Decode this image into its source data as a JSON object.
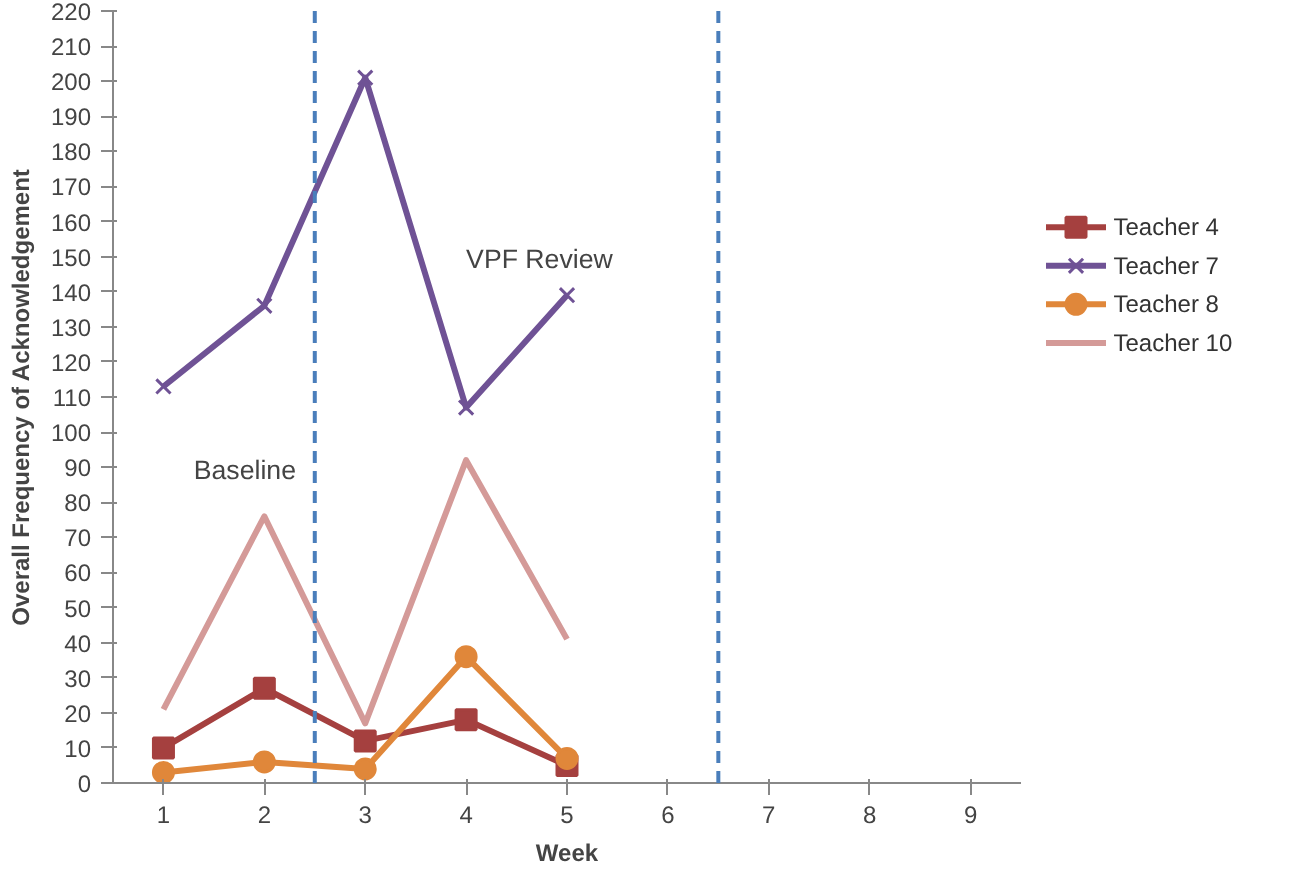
{
  "chart_data": {
    "type": "line",
    "xlabel": "Week",
    "ylabel": "Overall Frequency of Acknowledgement",
    "x": [
      1,
      2,
      3,
      4,
      5
    ],
    "series": [
      {
        "name": "Teacher 4",
        "color": "#a5403f",
        "marker": "square",
        "values": [
          10,
          27,
          12,
          18,
          5
        ]
      },
      {
        "name": "Teacher 7",
        "color": "#6f5295",
        "marker": "cross",
        "values": [
          113,
          136,
          201,
          107,
          139
        ]
      },
      {
        "name": "Teacher 8",
        "color": "#e0873a",
        "marker": "circle",
        "values": [
          3,
          6,
          4,
          36,
          7
        ]
      },
      {
        "name": "Teacher 10",
        "color": "#d49a98",
        "marker": "none",
        "values": [
          21,
          76,
          17,
          92,
          41
        ]
      }
    ],
    "xlim": [
      0.5,
      9.5
    ],
    "xticks": [
      1,
      2,
      3,
      4,
      5,
      6,
      7,
      8,
      9
    ],
    "ylim": [
      0,
      220
    ],
    "yticks": [
      0,
      10,
      20,
      30,
      40,
      50,
      60,
      70,
      80,
      90,
      100,
      110,
      120,
      130,
      140,
      150,
      160,
      170,
      180,
      190,
      200,
      210,
      220
    ],
    "ref_lines": [
      {
        "axis": "x",
        "value": 2.5,
        "color": "#4a7ebb",
        "line_style": "dashed"
      },
      {
        "axis": "x",
        "value": 6.5,
        "color": "#4a7ebb",
        "line_style": "dashed"
      }
    ],
    "annotations": [
      "Baseline",
      "VPF Review"
    ],
    "grid": false,
    "legend": "right"
  }
}
